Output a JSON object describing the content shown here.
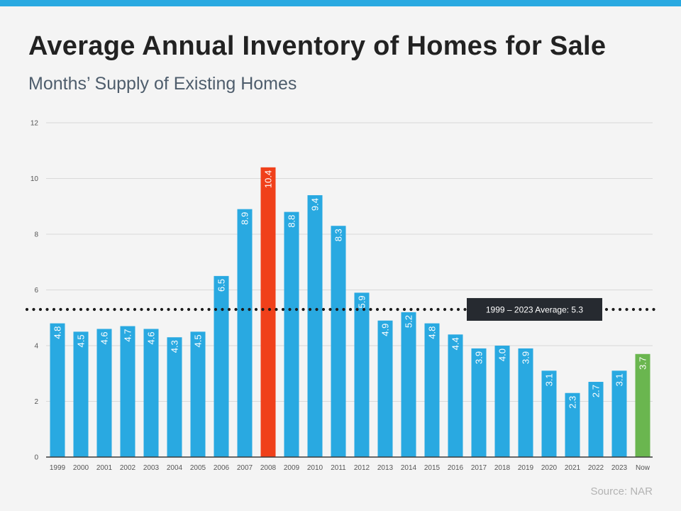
{
  "header": {
    "title": "Average Annual Inventory of Homes for Sale",
    "subtitle": "Months’ Supply of Existing Homes"
  },
  "footer": {
    "source": "Source: NAR"
  },
  "colors": {
    "accent_bar": "#29a9e1",
    "bar_default": "#29a9e1",
    "bar_peak": "#f0401a",
    "bar_now": "#6ab64f",
    "average_line": "#1c1c1c",
    "average_box": "#262a30"
  },
  "chart_data": {
    "type": "bar",
    "title": "Average Annual Inventory of Homes for Sale",
    "subtitle": "Months’ Supply of Existing Homes",
    "xlabel": "",
    "ylabel": "",
    "ylim": [
      0,
      12
    ],
    "yticks": [
      0,
      2,
      4,
      6,
      8,
      10,
      12
    ],
    "grid": true,
    "categories": [
      "1999",
      "2000",
      "2001",
      "2002",
      "2003",
      "2004",
      "2005",
      "2006",
      "2007",
      "2008",
      "2009",
      "2010",
      "2011",
      "2012",
      "2013",
      "2014",
      "2015",
      "2016",
      "2017",
      "2018",
      "2019",
      "2020",
      "2021",
      "2022",
      "2023",
      "Now"
    ],
    "values": [
      4.8,
      4.5,
      4.6,
      4.7,
      4.6,
      4.3,
      4.5,
      6.5,
      8.9,
      10.4,
      8.8,
      9.4,
      8.3,
      5.9,
      4.9,
      5.2,
      4.8,
      4.4,
      3.9,
      4.0,
      3.9,
      3.1,
      2.3,
      2.7,
      3.1,
      3.7
    ],
    "labels": [
      "4.8",
      "4.5",
      "4.6",
      "4.7",
      "4.6",
      "4.3",
      "4.5",
      "6.5",
      "8.9",
      "10.4",
      "8.8",
      "9.4",
      "8.3",
      "5.9",
      "4.9",
      "5.2",
      "4.8",
      "4.4",
      "3.9",
      "4.0",
      "3.9",
      "3.1",
      "2.3",
      "2.7",
      "3.1",
      "3.7"
    ],
    "highlight": {
      "2008": "peak",
      "Now": "now"
    },
    "average": {
      "value": 5.3,
      "label": "1999 – 2023 Average:  5.3",
      "style": "dotted"
    },
    "source": "Source: NAR"
  }
}
